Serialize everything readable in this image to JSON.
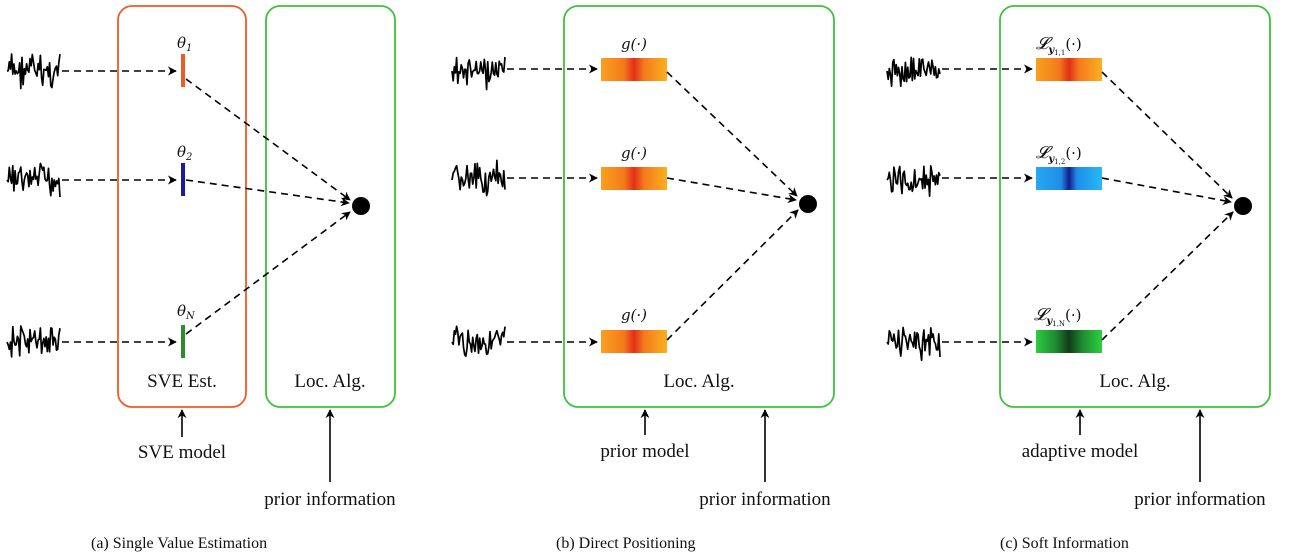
{
  "colors": {
    "sve_box": "#f05a24",
    "loc_box": "#3cc23c",
    "theta_1": "#f05a24",
    "theta_2": "#1a1aa6",
    "theta_N": "#2e8b2e"
  },
  "panel_a": {
    "theta_1": "θ",
    "theta_1_sub": "1",
    "theta_2": "θ",
    "theta_2_sub": "2",
    "theta_N": "θ",
    "theta_N_sub": "N",
    "sve_box_label": "SVE Est.",
    "loc_box_label": "Loc. Alg.",
    "model_input": "SVE model",
    "prior_input": "prior information",
    "caption": "(a) Single Value Estimation"
  },
  "panel_b": {
    "g_label_1": "g(·)",
    "g_label_2": "g(·)",
    "g_label_3": "g(·)",
    "loc_box_label": "Loc. Alg.",
    "model_input": "prior model",
    "prior_input": "prior information",
    "caption": "(b) Direct Positioning"
  },
  "panel_c": {
    "L_1": "𝓛",
    "L_1_sub": "y",
    "L_1_idx": "1,1",
    "L_2": "𝓛",
    "L_2_sub": "y",
    "L_2_idx": "1,2",
    "L_3": "𝓛",
    "L_3_sub": "y",
    "L_3_idx": "1,N",
    "L_args": "(·)",
    "loc_box_label": "Loc. Alg.",
    "model_input": "adaptive model",
    "prior_input": "prior information",
    "caption": "(c) Soft Information"
  }
}
